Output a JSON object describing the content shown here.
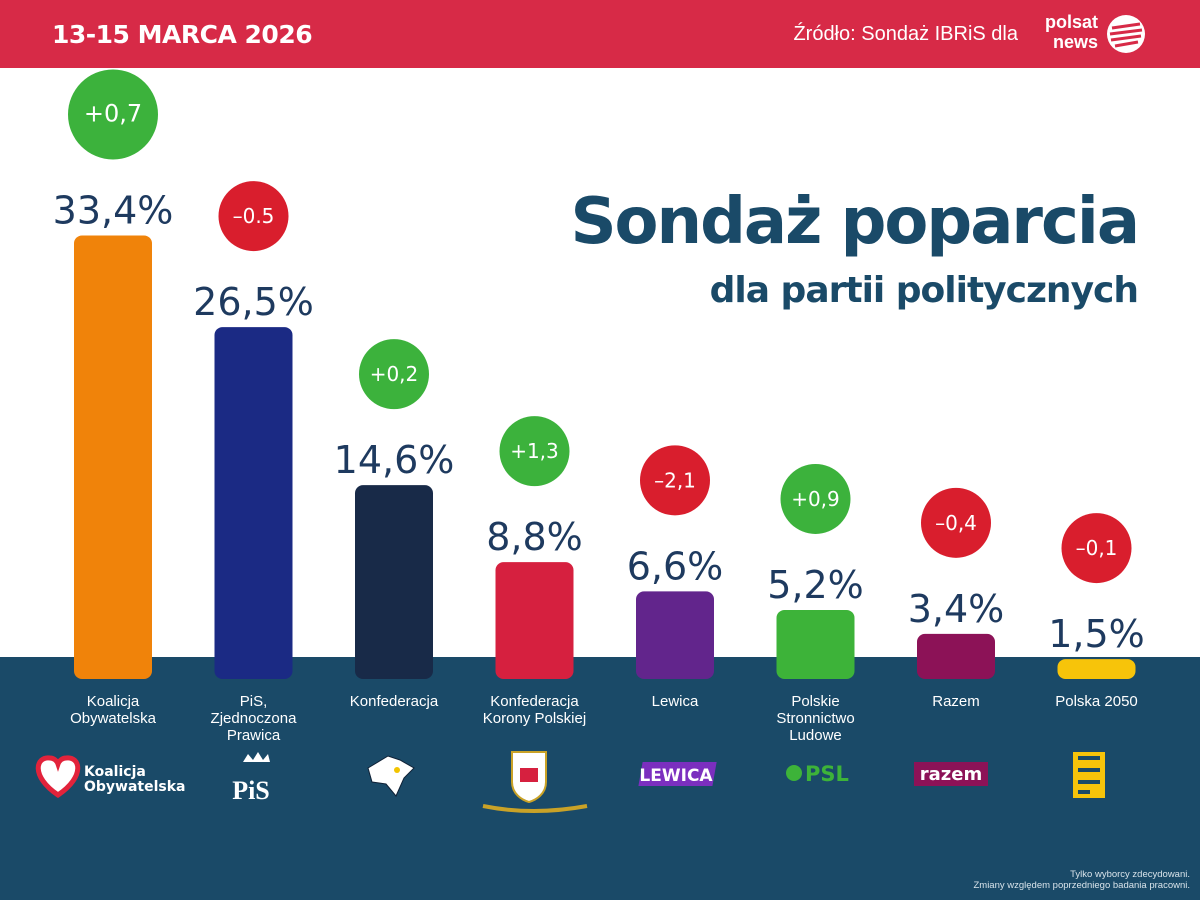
{
  "header": {
    "date": "13-15 MARCA 2026",
    "source": "Źródło: Sondaż IBRiS dla",
    "brand_line1": "polsat",
    "brand_line2": "news"
  },
  "title": "Sondaż poparcia",
  "subtitle": "dla partii politycznych",
  "chart_data": {
    "type": "bar",
    "categories": [
      "Koalicja Obywatelska",
      "PiS, Zjednoczona Prawica",
      "Konfederacja",
      "Konfederacja Korony Polskiej",
      "Lewica",
      "Polskie Stronnictwo Ludowe",
      "Razem",
      "Polska 2050"
    ],
    "category_lines": [
      [
        "Koalicja",
        "Obywatelska"
      ],
      [
        "PiS,",
        "Zjednoczona",
        "Prawica"
      ],
      [
        "Konfederacja"
      ],
      [
        "Konfederacja",
        "Korony Polskiej"
      ],
      [
        "Lewica"
      ],
      [
        "Polskie",
        "Stronnictwo",
        "Ludowe"
      ],
      [
        "Razem"
      ],
      [
        "Polska 2050"
      ]
    ],
    "values": [
      33.4,
      26.5,
      14.6,
      8.8,
      6.6,
      5.2,
      3.4,
      1.5
    ],
    "value_labels": [
      "33,4%",
      "26,5%",
      "14,6%",
      "8,8%",
      "6,6%",
      "5,2%",
      "3,4%",
      "1,5%"
    ],
    "changes": [
      0.7,
      -0.5,
      0.2,
      1.3,
      -2.1,
      0.9,
      -0.4,
      -0.1
    ],
    "change_labels": [
      "+0,7",
      "–0.5",
      "+0,2",
      "+1,3",
      "–2,1",
      "+0,9",
      "–0,4",
      "–0,1"
    ],
    "bar_colors": [
      "#f0830a",
      "#1b2a84",
      "#182a48",
      "#d6203f",
      "#62258c",
      "#3db339",
      "#8c1257",
      "#f7c40a"
    ],
    "change_colors": {
      "up": "#3cb23c",
      "down": "#d91e2d"
    },
    "logos": [
      {
        "name": "ko-logo-icon",
        "text": [
          "Koalicja",
          "Obywatelska"
        ]
      },
      {
        "name": "pis-logo-icon",
        "text": [
          "PiS"
        ]
      },
      {
        "name": "konfederacja-eagle-logo-icon",
        "text": []
      },
      {
        "name": "kkp-coat-of-arms-logo-icon",
        "text": []
      },
      {
        "name": "lewica-logo-icon",
        "text": [
          "LEWICA"
        ]
      },
      {
        "name": "psl-logo-icon",
        "text": [
          "PSL"
        ]
      },
      {
        "name": "razem-logo-icon",
        "text": [
          "razem"
        ]
      },
      {
        "name": "polska2050-logo-icon",
        "text": []
      }
    ],
    "ylim": [
      0,
      35
    ]
  },
  "footnote": {
    "line1": "Tylko wyborcy zdecydowani.",
    "line2": "Zmiany względem poprzedniego badania pracowni."
  }
}
